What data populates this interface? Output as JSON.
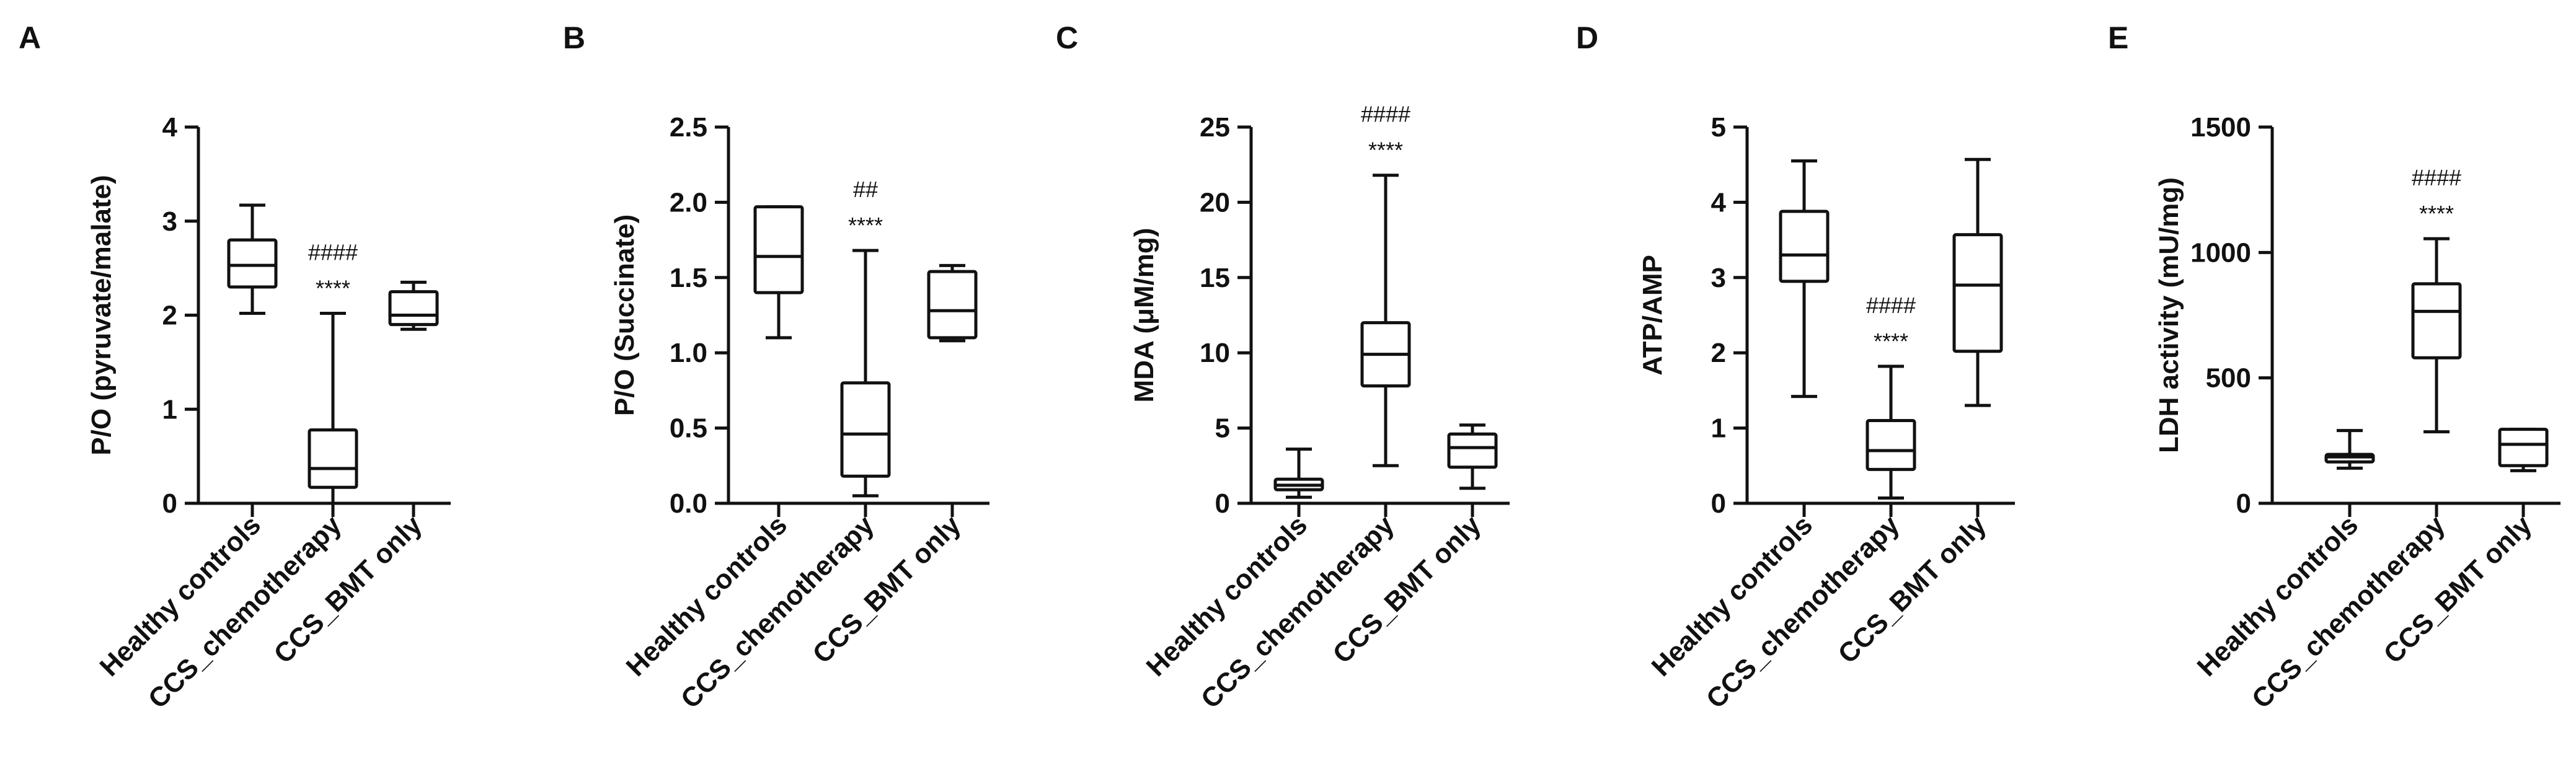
{
  "chart_data": [
    {
      "panel": "A",
      "type": "box",
      "ylabel": "P/O (pyruvate/malate)",
      "ylim": [
        0,
        4
      ],
      "yticks": [
        "0",
        "1",
        "2",
        "3",
        "4"
      ],
      "categories": [
        "Healthy  controls",
        "CCS_chemotherapy",
        "CCS_BMT only"
      ],
      "boxes": [
        {
          "min": 2.02,
          "q1": 2.3,
          "median": 2.53,
          "q3": 2.8,
          "max": 3.17
        },
        {
          "min": 0.0,
          "q1": 0.17,
          "median": 0.37,
          "q3": 0.78,
          "max": 2.02
        },
        {
          "min": 1.85,
          "q1": 1.9,
          "median": 2.0,
          "q3": 2.25,
          "max": 2.35
        }
      ],
      "annotations": [
        {
          "category": 1,
          "lines": [
            "####",
            "****"
          ]
        }
      ]
    },
    {
      "panel": "B",
      "type": "box",
      "ylabel": "P/O (Succinate)",
      "ylim": [
        0,
        2.5
      ],
      "yticks": [
        "0.0",
        "0.5",
        "1.0",
        "1.5",
        "2.0",
        "2.5"
      ],
      "categories": [
        "Healthy  controls",
        "CCS_chemotherapy",
        "CCS_BMT only"
      ],
      "boxes": [
        {
          "min": 1.1,
          "q1": 1.4,
          "median": 1.64,
          "q3": 1.97,
          "max": 1.97
        },
        {
          "min": 0.05,
          "q1": 0.18,
          "median": 0.46,
          "q3": 0.8,
          "max": 1.68
        },
        {
          "min": 1.08,
          "q1": 1.1,
          "median": 1.28,
          "q3": 1.54,
          "max": 1.58
        }
      ],
      "annotations": [
        {
          "category": 1,
          "lines": [
            "##",
            "****"
          ]
        }
      ]
    },
    {
      "panel": "C",
      "type": "box",
      "ylabel": "MDA (μM/mg)",
      "ylim": [
        0,
        25
      ],
      "yticks": [
        "0",
        "5",
        "10",
        "15",
        "20",
        "25"
      ],
      "categories": [
        "Healthy  controls",
        "CCS_chemotherapy",
        "CCS_BMT only"
      ],
      "boxes": [
        {
          "min": 0.4,
          "q1": 0.9,
          "median": 1.2,
          "q3": 1.6,
          "max": 3.6
        },
        {
          "min": 2.5,
          "q1": 7.8,
          "median": 9.9,
          "q3": 12.0,
          "max": 21.8
        },
        {
          "min": 1.0,
          "q1": 2.4,
          "median": 3.7,
          "q3": 4.6,
          "max": 5.2
        }
      ],
      "annotations": [
        {
          "category": 1,
          "lines": [
            "####",
            "****"
          ]
        }
      ]
    },
    {
      "panel": "D",
      "type": "box",
      "ylabel": "ATP/AMP",
      "ylim": [
        0,
        5
      ],
      "yticks": [
        "0",
        "1",
        "2",
        "3",
        "4",
        "5"
      ],
      "categories": [
        "Healthy  controls",
        "CCS_chemotherapy",
        "CCS_BMT only"
      ],
      "boxes": [
        {
          "min": 1.42,
          "q1": 2.95,
          "median": 3.3,
          "q3": 3.88,
          "max": 4.55
        },
        {
          "min": 0.07,
          "q1": 0.45,
          "median": 0.7,
          "q3": 1.1,
          "max": 1.82
        },
        {
          "min": 1.3,
          "q1": 2.02,
          "median": 2.9,
          "q3": 3.57,
          "max": 4.57
        }
      ],
      "annotations": [
        {
          "category": 1,
          "lines": [
            "####",
            "****"
          ]
        }
      ]
    },
    {
      "panel": "E",
      "type": "box",
      "ylabel": "LDH activity (mU/mg)",
      "ylim": [
        0,
        1500
      ],
      "yticks": [
        "0",
        "500",
        "1000",
        "1500"
      ],
      "categories": [
        "Healthy  controls",
        "CCS_chemotherapy",
        "CCS_BMT only"
      ],
      "boxes": [
        {
          "min": 140,
          "q1": 165,
          "median": 185,
          "q3": 195,
          "max": 290
        },
        {
          "min": 285,
          "q1": 580,
          "median": 765,
          "q3": 875,
          "max": 1055
        },
        {
          "min": 130,
          "q1": 150,
          "median": 235,
          "q3": 295,
          "max": 295
        }
      ],
      "annotations": [
        {
          "category": 1,
          "lines": [
            "####",
            "****"
          ]
        }
      ]
    }
  ]
}
